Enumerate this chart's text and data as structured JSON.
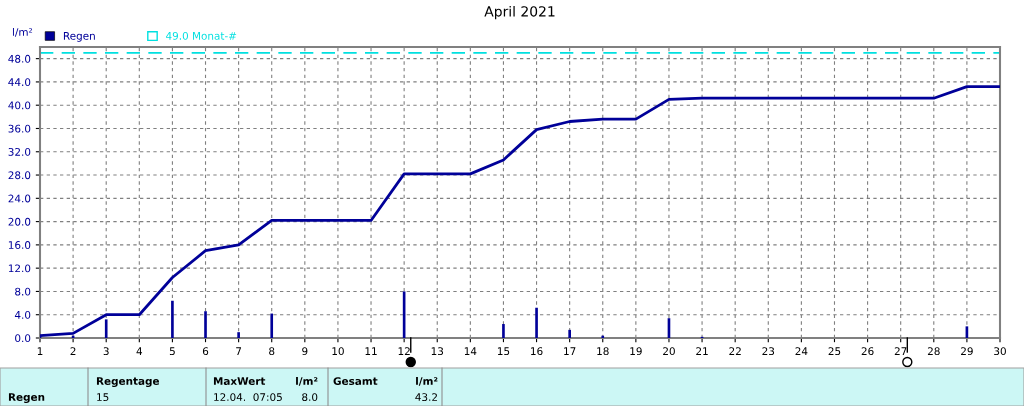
{
  "chart_data": {
    "type": "bar",
    "title": "April 2021",
    "ylabel": "l/m²",
    "x": [
      1,
      2,
      3,
      4,
      5,
      6,
      7,
      8,
      9,
      10,
      11,
      12,
      13,
      14,
      15,
      16,
      17,
      18,
      19,
      20,
      21,
      22,
      23,
      24,
      25,
      26,
      27,
      28,
      29,
      30
    ],
    "series": [
      {
        "name": "Regen",
        "color": "#000099",
        "values": [
          0.4,
          0.4,
          3.2,
          null,
          6.4,
          4.6,
          1.0,
          4.2,
          null,
          null,
          null,
          8.0,
          null,
          null,
          2.4,
          5.2,
          1.4,
          0.4,
          null,
          3.4,
          0.2,
          null,
          null,
          null,
          null,
          null,
          null,
          null,
          2.0,
          null
        ]
      },
      {
        "type": "line",
        "color": "#000099",
        "values": [
          0.4,
          0.8,
          4.0,
          4.0,
          10.4,
          15.0,
          16.0,
          20.2,
          20.2,
          20.2,
          20.2,
          28.2,
          28.2,
          28.2,
          30.6,
          35.8,
          37.2,
          37.6,
          37.6,
          41.0,
          41.2,
          41.2,
          41.2,
          41.2,
          41.2,
          41.2,
          41.2,
          41.2,
          43.2,
          43.2
        ]
      }
    ],
    "ref_lines": [
      {
        "axis": "y",
        "value": 49.0,
        "label": "49.0 Monat-#",
        "color": "#00e0e0",
        "line_style": "dashed"
      }
    ],
    "xlim": [
      1,
      30
    ],
    "xticks": [
      1,
      2,
      3,
      4,
      5,
      6,
      7,
      8,
      9,
      10,
      11,
      12,
      13,
      14,
      15,
      16,
      17,
      18,
      19,
      20,
      21,
      22,
      23,
      24,
      25,
      26,
      27,
      28,
      29,
      30
    ],
    "ylim": [
      0,
      50
    ],
    "yticks": [
      {
        "value": 0,
        "label": "0.0"
      },
      {
        "value": 4,
        "label": "4.0"
      },
      {
        "value": 8,
        "label": "8.0"
      },
      {
        "value": 12,
        "label": "12.0"
      },
      {
        "value": 16,
        "label": "16.0"
      },
      {
        "value": 20,
        "label": "20.0"
      },
      {
        "value": 24,
        "label": "24.0"
      },
      {
        "value": 28,
        "label": "28.0"
      },
      {
        "value": 32,
        "label": "32.0"
      },
      {
        "value": 36,
        "label": "36.0"
      },
      {
        "value": 40,
        "label": "40.0"
      },
      {
        "value": 44,
        "label": "44.0"
      },
      {
        "value": 48,
        "label": "48.0"
      }
    ],
    "grid": true,
    "legend": "top left",
    "annotations": [
      "Regen",
      "Regentage",
      "15",
      "MaxWert",
      "l/m²",
      "12.04.  07:05",
      "8.0",
      "Gesamt",
      "l/m²",
      "43.2"
    ]
  }
}
